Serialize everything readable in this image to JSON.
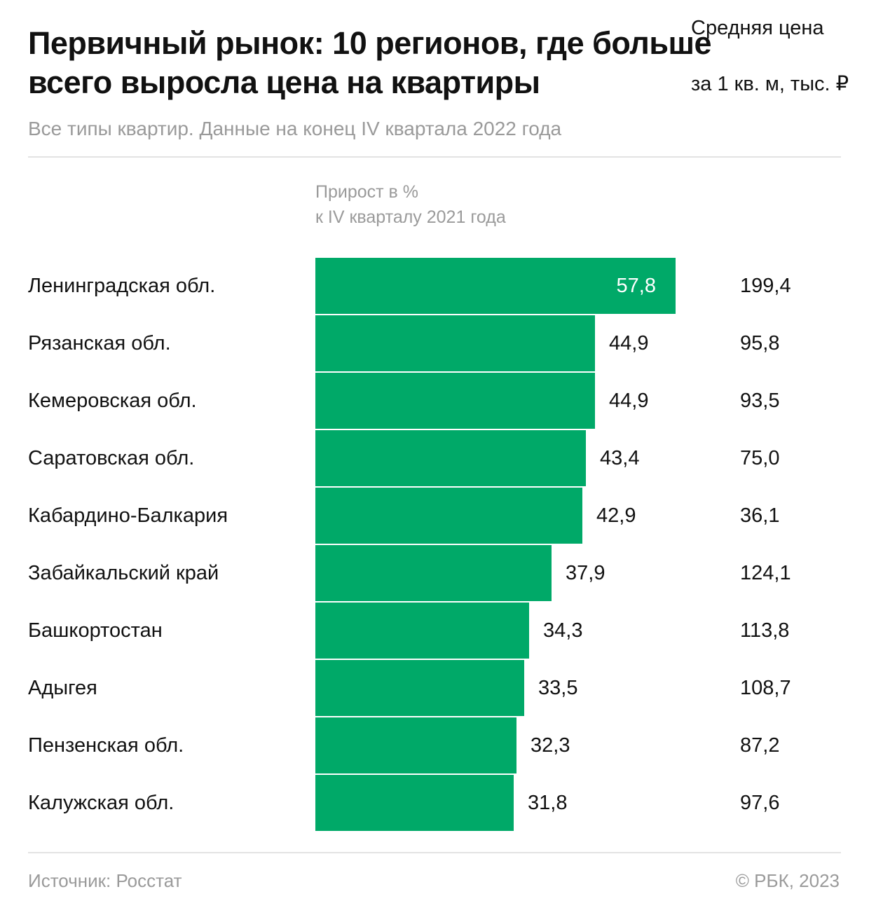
{
  "header": {
    "title_line1": "Первичный рынок: 10 регионов, где больше",
    "title_line2": "всего выросла цена на квартиры",
    "subtitle": "Все типы квартир. Данные на конец IV квартала 2022 года"
  },
  "columns": {
    "growth_line1": "Прирост в %",
    "growth_line2": "к IV кварталу 2021 года",
    "price_line1": "Средняя цена",
    "price_line2": "за 1 кв. м, тыс. ₽"
  },
  "footer": {
    "source": "Источник: Росстат",
    "copyright": "© РБК, 2023"
  },
  "colors": {
    "bar": "#00a968",
    "label_inside": "#ffffff",
    "label_outside": "#111111"
  },
  "chart_data": {
    "type": "bar",
    "orientation": "horizontal",
    "categories": [
      "Ленинградская обл.",
      "Рязанская обл.",
      "Кемеровская обл.",
      "Саратовская обл.",
      "Кабардино-Балкария",
      "Забайкальский край",
      "Башкортостан",
      "Адыгея",
      "Пензенская обл.",
      "Калужская обл."
    ],
    "values": [
      57.8,
      44.9,
      44.9,
      43.4,
      42.9,
      37.9,
      34.3,
      33.5,
      32.3,
      31.8
    ],
    "value_labels": [
      "57,8",
      "44,9",
      "44,9",
      "43,4",
      "42,9",
      "37,9",
      "34,3",
      "33,5",
      "32,3",
      "31,8"
    ],
    "price_labels": [
      "199,4",
      "95,8",
      "93,5",
      "75,0",
      "36,1",
      "124,1",
      "113,8",
      "108,7",
      "87,2",
      "97,6"
    ],
    "price_values": [
      199.4,
      95.8,
      93.5,
      75.0,
      36.1,
      124.1,
      113.8,
      108.7,
      87.2,
      97.6
    ],
    "xlim": [
      0,
      57.8
    ],
    "grid": false,
    "legend": "none"
  }
}
